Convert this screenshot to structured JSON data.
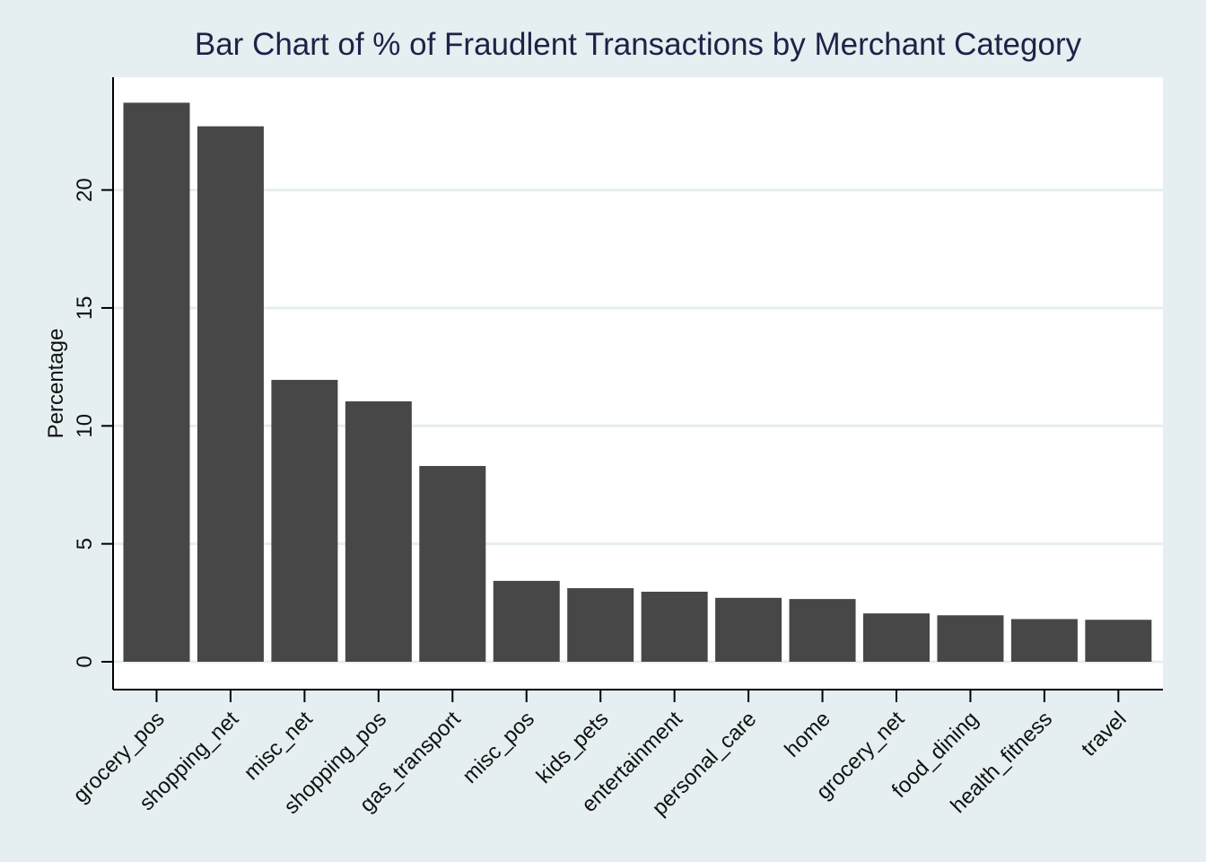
{
  "chart_data": {
    "type": "bar",
    "title": "Bar Chart of % of Fraudlent Transactions by Merchant Category",
    "ylabel": "Percentage",
    "xlabel": "",
    "categories": [
      "grocery_pos",
      "shopping_net",
      "misc_net",
      "shopping_pos",
      "gas_transport",
      "misc_pos",
      "kids_pets",
      "entertainment",
      "personal_care",
      "home",
      "grocery_net",
      "food_dining",
      "health_fitness",
      "travel"
    ],
    "values": [
      23.7,
      22.7,
      11.95,
      11.04,
      8.3,
      3.43,
      3.12,
      2.97,
      2.71,
      2.66,
      2.05,
      1.97,
      1.81,
      1.78
    ],
    "ylim": [
      0,
      25
    ],
    "yticks": [
      "0",
      "5",
      "10",
      "15",
      "20"
    ],
    "grid": true,
    "legend": "none",
    "colors": {
      "bar": "#474747",
      "plot_background": "#ffffff",
      "outer_background": "#e5eef0",
      "grid": "#e5eef0",
      "axis": "#000000",
      "title": "#1b2447"
    }
  }
}
